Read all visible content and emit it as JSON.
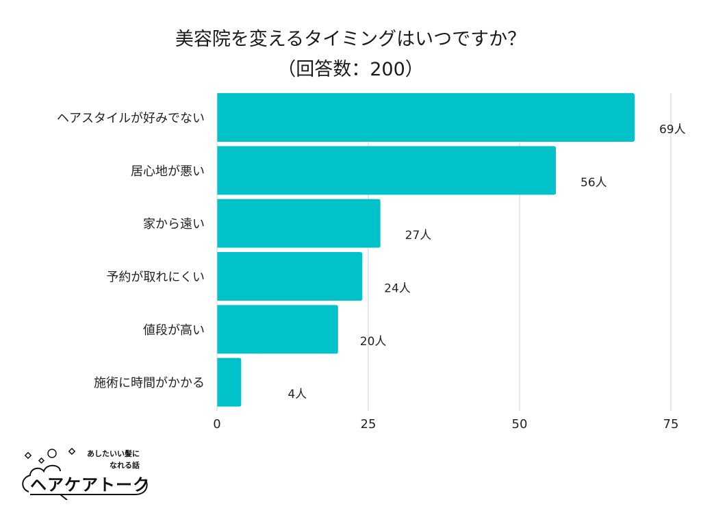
{
  "chart_data": {
    "type": "bar",
    "orientation": "horizontal",
    "title": "美容院を変えるタイミングはいつですか？",
    "subtitle": "（回答数：200）",
    "categories": [
      "ヘアスタイルが好みでない",
      "居心地が悪い",
      "家から遠い",
      "予約が取れにくい",
      "値段が高い",
      "施術に時間がかかる"
    ],
    "values": [
      69,
      56,
      27,
      24,
      20,
      4
    ],
    "value_labels": [
      "69人",
      "56人",
      "27人",
      "24人",
      "20人",
      "4人"
    ],
    "xticks": [
      "0",
      "25",
      "50",
      "75"
    ],
    "xlim": [
      0,
      75
    ],
    "grid": true,
    "bar_color": "#00C2C8"
  },
  "brand": {
    "tagline_line1": "あしたいい髪に",
    "tagline_line2": "なれる話",
    "name": "ヘアケアトーク"
  }
}
